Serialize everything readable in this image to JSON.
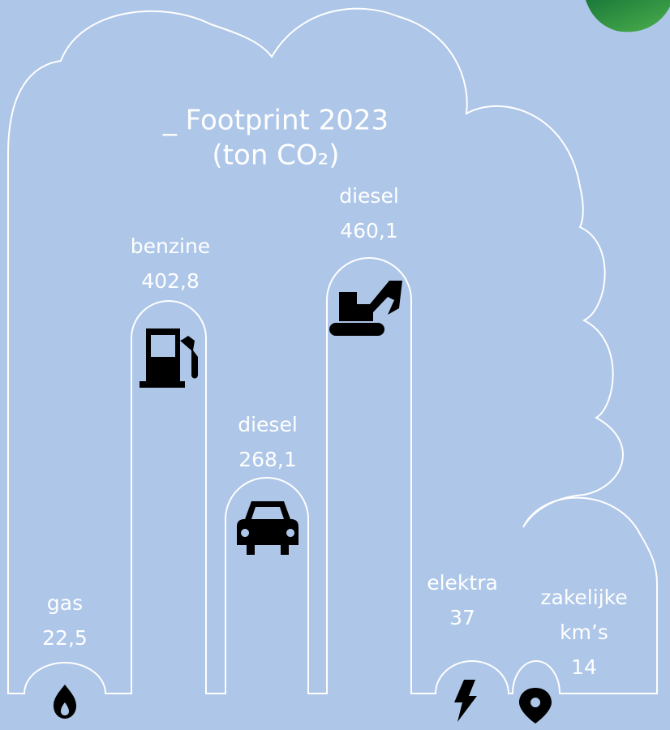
{
  "title": "_ Footprint 2023",
  "unit": "(ton CO₂)",
  "items": [
    {
      "label": [
        "gas"
      ],
      "value": "22,5"
    },
    {
      "label": [
        "benzine"
      ],
      "value": "402,8"
    },
    {
      "label": [
        "diesel"
      ],
      "value": "268,1"
    },
    {
      "label": [
        "diesel"
      ],
      "value": "460,1"
    },
    {
      "label": [
        "elektra"
      ],
      "value": "37"
    },
    {
      "label": [
        "zakelijke",
        "km’s"
      ],
      "value": "14"
    }
  ]
}
